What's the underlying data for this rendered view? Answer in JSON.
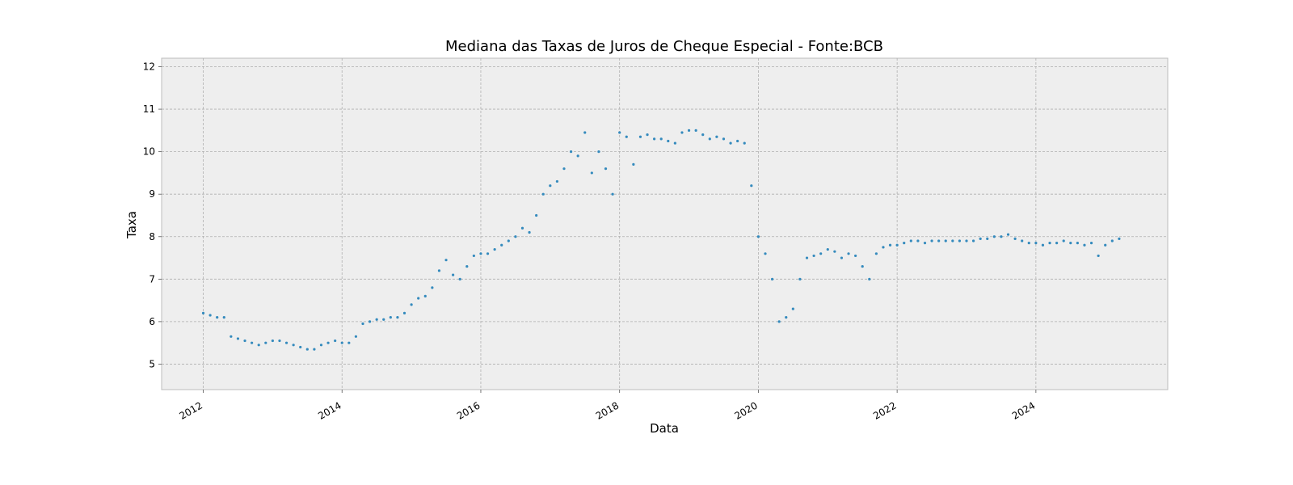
{
  "chart_data": {
    "type": "scatter",
    "title": "Mediana das Taxas de Juros de Cheque Especial - Fonte:BCB",
    "xlabel": "Data",
    "ylabel": "Taxa",
    "xlim": [
      2011.4,
      2025.9
    ],
    "ylim": [
      4.4,
      12.2
    ],
    "x_ticks": [
      2012,
      2014,
      2016,
      2018,
      2020,
      2022,
      2024
    ],
    "x_tick_labels": [
      "2012",
      "2014",
      "2016",
      "2018",
      "2020",
      "2022",
      "2024"
    ],
    "y_ticks": [
      5,
      6,
      7,
      8,
      9,
      10,
      11,
      12
    ],
    "y_tick_labels": [
      "5",
      "6",
      "7",
      "8",
      "9",
      "10",
      "11",
      "12"
    ],
    "grid": true,
    "marker_color": "#348ABD",
    "background": "#EEEEEE",
    "series": [
      {
        "name": "Mediana",
        "x": [
          2012.0,
          2012.1,
          2012.2,
          2012.3,
          2012.4,
          2012.5,
          2012.6,
          2012.7,
          2012.8,
          2012.9,
          2013.0,
          2013.1,
          2013.2,
          2013.3,
          2013.4,
          2013.5,
          2013.6,
          2013.7,
          2013.8,
          2013.9,
          2014.0,
          2014.1,
          2014.2,
          2014.3,
          2014.4,
          2014.5,
          2014.6,
          2014.7,
          2014.8,
          2014.9,
          2015.0,
          2015.1,
          2015.2,
          2015.3,
          2015.4,
          2015.5,
          2015.6,
          2015.7,
          2015.8,
          2015.9,
          2016.0,
          2016.1,
          2016.2,
          2016.3,
          2016.4,
          2016.5,
          2016.6,
          2016.7,
          2016.8,
          2016.9,
          2017.0,
          2017.1,
          2017.2,
          2017.3,
          2017.4,
          2017.5,
          2017.6,
          2017.7,
          2017.8,
          2017.9,
          2018.0,
          2018.1,
          2018.2,
          2018.3,
          2018.4,
          2018.5,
          2018.6,
          2018.7,
          2018.8,
          2018.9,
          2019.0,
          2019.1,
          2019.2,
          2019.3,
          2019.4,
          2019.5,
          2019.6,
          2019.7,
          2019.8,
          2019.9,
          2020.0,
          2020.1,
          2020.2,
          2020.3,
          2020.4,
          2020.5,
          2020.6,
          2020.7,
          2020.8,
          2020.9,
          2021.0,
          2021.1,
          2021.2,
          2021.3,
          2021.4,
          2021.5,
          2021.6,
          2021.7,
          2021.8,
          2021.9,
          2022.0,
          2022.1,
          2022.2,
          2022.3,
          2022.4,
          2022.5,
          2022.6,
          2022.7,
          2022.8,
          2022.9,
          2023.0,
          2023.1,
          2023.2,
          2023.3,
          2023.4,
          2023.5,
          2023.6,
          2023.7,
          2023.8,
          2023.9,
          2024.0,
          2024.1,
          2024.2,
          2024.3,
          2024.4,
          2024.5,
          2024.6,
          2024.7,
          2024.8,
          2024.9,
          2025.0,
          2025.1,
          2025.2
        ],
        "y": [
          6.2,
          6.15,
          6.1,
          6.1,
          5.65,
          5.6,
          5.55,
          5.5,
          5.45,
          5.5,
          5.55,
          5.55,
          5.5,
          5.45,
          5.4,
          5.35,
          5.35,
          5.45,
          5.5,
          5.55,
          5.5,
          5.5,
          5.65,
          5.95,
          6.0,
          6.05,
          6.05,
          6.1,
          6.1,
          6.2,
          6.4,
          6.55,
          6.6,
          6.8,
          7.2,
          7.45,
          7.1,
          7.0,
          7.3,
          7.55,
          7.6,
          7.6,
          7.7,
          7.8,
          7.9,
          8.0,
          8.2,
          8.1,
          8.5,
          9.0,
          9.2,
          9.3,
          9.6,
          10.0,
          9.9,
          10.45,
          9.5,
          10.0,
          9.6,
          9.0,
          10.45,
          10.35,
          9.7,
          10.35,
          10.4,
          10.3,
          10.3,
          10.25,
          10.2,
          10.45,
          10.5,
          10.5,
          10.4,
          10.3,
          10.35,
          10.3,
          10.2,
          10.25,
          10.2,
          9.2,
          8.0,
          7.6,
          7.0,
          6.0,
          6.1,
          6.3,
          7.0,
          7.5,
          7.55,
          7.6,
          7.7,
          7.65,
          7.5,
          7.6,
          7.55,
          7.3,
          7.0,
          7.6,
          7.75,
          7.8,
          7.8,
          7.85,
          7.9,
          7.9,
          7.85,
          7.9,
          7.9,
          7.9,
          7.9,
          7.9,
          7.9,
          7.9,
          7.95,
          7.95,
          8.0,
          8.0,
          8.05,
          7.95,
          7.9,
          7.85,
          7.85,
          7.8,
          7.85,
          7.85,
          7.9,
          7.85,
          7.85,
          7.8,
          7.85,
          7.55,
          7.8,
          7.9,
          7.95
        ]
      }
    ]
  }
}
